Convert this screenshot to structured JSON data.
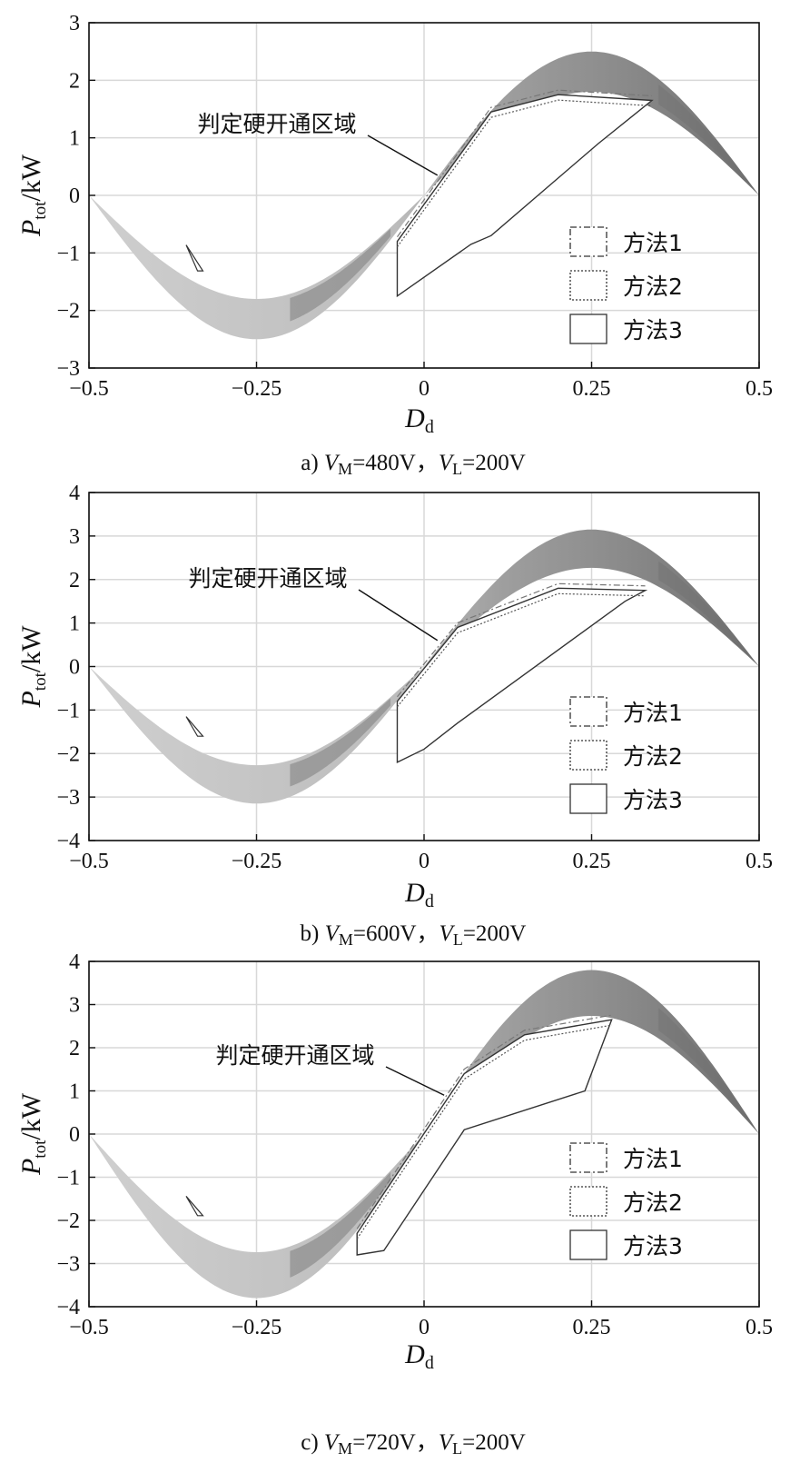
{
  "chart_data": [
    {
      "type": "area",
      "panel_label": "a)",
      "caption_vm": "=480V，",
      "caption_vl": "=200V",
      "xlabel": "D",
      "xlabel_sub": "d",
      "ylabel": "P",
      "ylabel_sub": "tot",
      "ylabel_unit": "/kW",
      "xlim": [
        -0.5,
        0.5
      ],
      "ylim": [
        -3,
        3
      ],
      "xticks": [
        "-0.5",
        "-0.25",
        "0",
        "0.25",
        "0.5"
      ],
      "yticks": [
        "-3",
        "-2",
        "-1",
        "0",
        "1",
        "2",
        "3"
      ],
      "grid": true,
      "legend_position": "bottom-right",
      "annotation": "判定硬开通区域",
      "annotation_target": [
        0.02,
        0.35
      ],
      "series": [
        {
          "name": "方法1",
          "style": "dash-dot"
        },
        {
          "name": "方法2",
          "style": "dotted"
        },
        {
          "name": "方法3",
          "style": "solid"
        }
      ],
      "p_peak": 2.5,
      "zvs_region_x": [
        -0.04,
        0.34
      ],
      "boundary_top": [
        [
          -0.04,
          -0.8
        ],
        [
          0.1,
          1.45
        ],
        [
          0.2,
          1.75
        ],
        [
          0.34,
          1.65
        ]
      ],
      "boundary_bottom": [
        [
          -0.04,
          -1.75
        ],
        [
          0.07,
          -0.85
        ],
        [
          0.1,
          -0.7
        ],
        [
          0.26,
          0.9
        ]
      ]
    },
    {
      "type": "area",
      "panel_label": "b)",
      "caption_vm": "=600V，",
      "caption_vl": "=200V",
      "xlabel": "D",
      "xlabel_sub": "d",
      "ylabel": "P",
      "ylabel_sub": "tot",
      "ylabel_unit": "/kW",
      "xlim": [
        -0.5,
        0.5
      ],
      "ylim": [
        -4,
        4
      ],
      "xticks": [
        "-0.5",
        "-0.25",
        "0",
        "0.25",
        "0.5"
      ],
      "yticks": [
        "-4",
        "-3",
        "-2",
        "-1",
        "0",
        "1",
        "2",
        "3",
        "4"
      ],
      "grid": true,
      "legend_position": "bottom-right",
      "annotation": "判定硬开通区域",
      "annotation_target": [
        0.02,
        0.6
      ],
      "series": [
        {
          "name": "方法1",
          "style": "dash-dot"
        },
        {
          "name": "方法2",
          "style": "dotted"
        },
        {
          "name": "方法3",
          "style": "solid"
        }
      ],
      "p_peak": 3.15,
      "zvs_region_x": [
        -0.04,
        0.34
      ],
      "boundary_top": [
        [
          -0.04,
          -0.8
        ],
        [
          0.05,
          0.9
        ],
        [
          0.2,
          1.8
        ],
        [
          0.33,
          1.75
        ]
      ],
      "boundary_bottom": [
        [
          -0.04,
          -2.2
        ],
        [
          0.0,
          -1.9
        ],
        [
          0.05,
          -1.3
        ],
        [
          0.3,
          1.5
        ]
      ]
    },
    {
      "type": "area",
      "panel_label": "c)",
      "caption_vm": "=720V，",
      "caption_vl": "=200V",
      "xlabel": "D",
      "xlabel_sub": "d",
      "ylabel": "P",
      "ylabel_sub": "tot",
      "ylabel_unit": "/kW",
      "xlim": [
        -0.5,
        0.5
      ],
      "ylim": [
        -4,
        4
      ],
      "xticks": [
        "-0.5",
        "-0.25",
        "0",
        "0.25",
        "0.5"
      ],
      "yticks": [
        "-4",
        "-3",
        "-2",
        "-1",
        "0",
        "1",
        "2",
        "3",
        "4"
      ],
      "grid": true,
      "legend_position": "bottom-right",
      "annotation": "判定硬开通区域",
      "annotation_target": [
        0.03,
        0.9
      ],
      "series": [
        {
          "name": "方法1",
          "style": "dash-dot"
        },
        {
          "name": "方法2",
          "style": "dotted"
        },
        {
          "name": "方法3",
          "style": "solid"
        }
      ],
      "p_peak": 3.8,
      "zvs_region_x": [
        -0.1,
        0.33
      ],
      "boundary_top": [
        [
          -0.1,
          -2.3
        ],
        [
          0.06,
          1.4
        ],
        [
          0.15,
          2.3
        ],
        [
          0.28,
          2.65
        ]
      ],
      "boundary_bottom": [
        [
          -0.1,
          -2.8
        ],
        [
          -0.06,
          -2.7
        ],
        [
          0.06,
          0.1
        ],
        [
          0.24,
          1.0
        ]
      ]
    }
  ],
  "caption_symbols": {
    "vm": "V",
    "vm_sub": "M",
    "vl": "V",
    "vl_sub": "L"
  },
  "colors": {
    "shade_light": "#cfcfcf",
    "shade_mid": "#9e9e9e",
    "shade_dark": "#6e6e6e",
    "grid": "#d8d8d8"
  }
}
